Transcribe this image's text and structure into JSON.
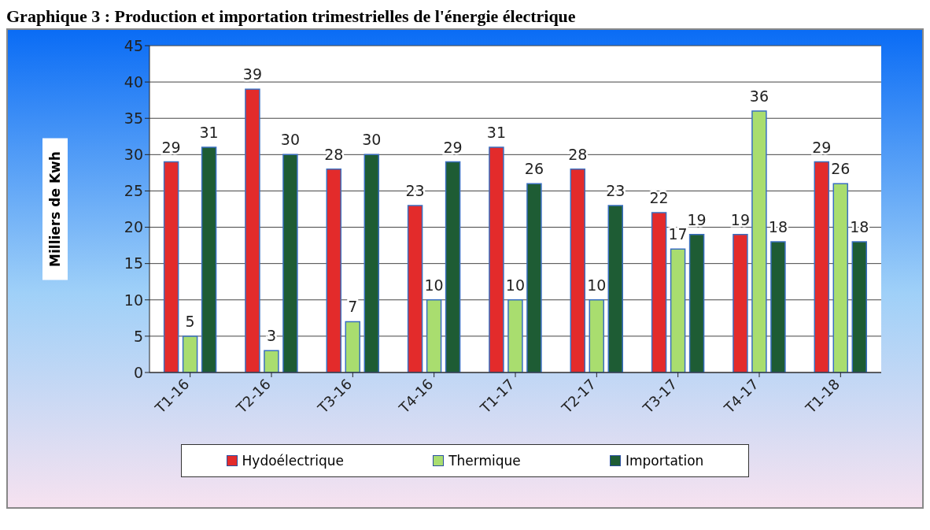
{
  "chart_data": {
    "type": "bar",
    "title": "Graphique 3 : Production et importation trimestrielles de l'énergie électrique",
    "ylabel": "Milliers de Kwh",
    "categories": [
      "T1-16",
      "T2-16",
      "T3-16",
      "T4-16",
      "T1-17",
      "T2-17",
      "T3-17",
      "T4-17",
      "T1-18"
    ],
    "series": [
      {
        "name": "Hydoélectrique",
        "color": "#e32b2b",
        "values": [
          29,
          39,
          28,
          23,
          31,
          28,
          22,
          19,
          29
        ]
      },
      {
        "name": "Thermique",
        "color": "#a9dd6f",
        "values": [
          5,
          3,
          7,
          10,
          10,
          10,
          17,
          36,
          26
        ]
      },
      {
        "name": "Importation",
        "color": "#1e5c34",
        "values": [
          31,
          30,
          30,
          29,
          26,
          23,
          19,
          18,
          18
        ]
      }
    ],
    "ylim": [
      0,
      45
    ],
    "yticks": [
      0,
      5,
      10,
      15,
      20,
      25,
      30,
      35,
      40,
      45
    ],
    "grid": "y",
    "legend": "bottom",
    "data_labels": true
  }
}
